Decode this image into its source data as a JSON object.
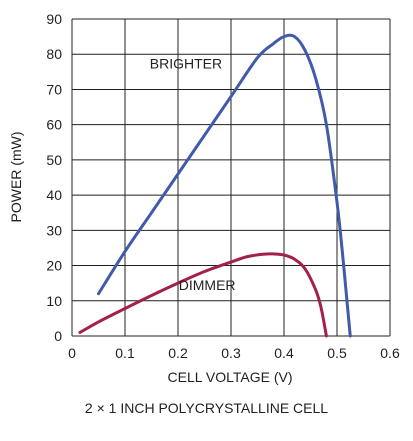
{
  "chart_data": {
    "type": "line",
    "xlabel": "CELL VOLTAGE (V)",
    "ylabel": "POWER (mW)",
    "xlim": [
      0,
      0.6
    ],
    "ylim": [
      0,
      90
    ],
    "x_ticks": [
      "0",
      "0.1",
      "0.2",
      "0.3",
      "0.4",
      "0.5",
      "0.6"
    ],
    "y_ticks": [
      "0",
      "10",
      "20",
      "30",
      "40",
      "50",
      "60",
      "70",
      "80",
      "90"
    ],
    "grid": true,
    "legend": "none",
    "series": [
      {
        "name": "BRIGHTER",
        "color": "#3f5ba9",
        "x": [
          0.05,
          0.1,
          0.15,
          0.2,
          0.25,
          0.3,
          0.35,
          0.38,
          0.4,
          0.42,
          0.44,
          0.46,
          0.48,
          0.5,
          0.51,
          0.52,
          0.525
        ],
        "y": [
          12,
          24,
          35,
          46,
          57,
          68,
          79,
          83,
          85,
          85,
          81,
          73,
          60,
          38,
          24,
          8,
          0
        ]
      },
      {
        "name": "DIMMER",
        "color": "#a31f4e",
        "x": [
          0.015,
          0.05,
          0.1,
          0.15,
          0.2,
          0.25,
          0.3,
          0.33,
          0.36,
          0.38,
          0.4,
          0.42,
          0.44,
          0.46,
          0.47,
          0.48
        ],
        "y": [
          1,
          4,
          7.8,
          11.5,
          15,
          18.3,
          21,
          22.5,
          23.2,
          23.3,
          23,
          21.8,
          19,
          13,
          8,
          0
        ]
      }
    ],
    "annotations": [
      {
        "text": "BRIGHTER",
        "x": 0.215,
        "y": 76
      },
      {
        "text": "DIMMER",
        "x": 0.255,
        "y": 13
      }
    ],
    "caption": "2 × 1 INCH POLYCRYSTALLINE CELL"
  }
}
